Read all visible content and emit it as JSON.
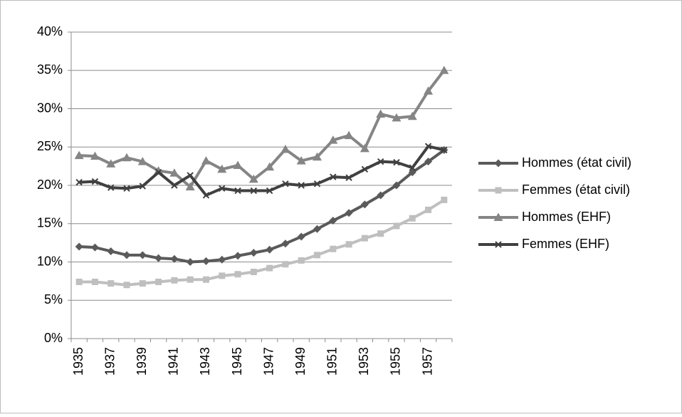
{
  "chart_data": {
    "type": "line",
    "categories": [
      "1935",
      null,
      "1937",
      null,
      "1939",
      null,
      "1941",
      null,
      "1943",
      null,
      "1945",
      null,
      "1947",
      null,
      "1949",
      null,
      "1951",
      null,
      "1953",
      null,
      "1955",
      null,
      "1957",
      null
    ],
    "series": [
      {
        "name": "Hommes (état civil)",
        "color": "#5a5a5a",
        "marker": "diamond",
        "values": [
          12.0,
          11.9,
          11.4,
          10.9,
          10.9,
          10.5,
          10.4,
          10.0,
          10.1,
          10.3,
          10.8,
          11.2,
          11.6,
          12.4,
          13.3,
          14.3,
          15.4,
          16.4,
          17.5,
          18.7,
          20.0,
          21.7,
          23.1,
          24.6
        ]
      },
      {
        "name": "Femmes (état civil)",
        "color": "#bfbfbf",
        "marker": "square",
        "values": [
          7.4,
          7.4,
          7.2,
          7.0,
          7.2,
          7.4,
          7.6,
          7.7,
          7.7,
          8.2,
          8.4,
          8.7,
          9.2,
          9.7,
          10.2,
          10.9,
          11.7,
          12.3,
          13.1,
          13.7,
          14.7,
          15.7,
          16.8,
          18.1
        ]
      },
      {
        "name": "Hommes (EHF)",
        "color": "#858585",
        "marker": "triangle",
        "values": [
          23.9,
          23.8,
          22.8,
          23.6,
          23.1,
          21.9,
          21.6,
          19.8,
          23.2,
          22.1,
          22.6,
          20.8,
          22.4,
          24.7,
          23.2,
          23.7,
          25.9,
          26.5,
          24.8,
          29.3,
          28.8,
          29.0,
          32.3,
          35.0
        ]
      },
      {
        "name": "Femmes (EHF)",
        "color": "#404040",
        "marker": "x",
        "values": [
          20.4,
          20.5,
          19.7,
          19.6,
          19.9,
          21.7,
          20.0,
          21.3,
          18.7,
          19.6,
          19.3,
          19.3,
          19.3,
          20.2,
          20.0,
          20.2,
          21.1,
          21.0,
          22.1,
          23.1,
          23.0,
          22.3,
          25.1,
          24.6
        ]
      }
    ],
    "ylim": [
      0,
      40
    ],
    "yticks": [
      {
        "value": 0,
        "label": "0%"
      },
      {
        "value": 5,
        "label": "5%"
      },
      {
        "value": 10,
        "label": "10%"
      },
      {
        "value": 15,
        "label": "15%"
      },
      {
        "value": 20,
        "label": "20%"
      },
      {
        "value": 25,
        "label": "25%"
      },
      {
        "value": 30,
        "label": "30%"
      },
      {
        "value": 35,
        "label": "35%"
      },
      {
        "value": 40,
        "label": "40%"
      }
    ],
    "grid": true,
    "legend": "right"
  }
}
